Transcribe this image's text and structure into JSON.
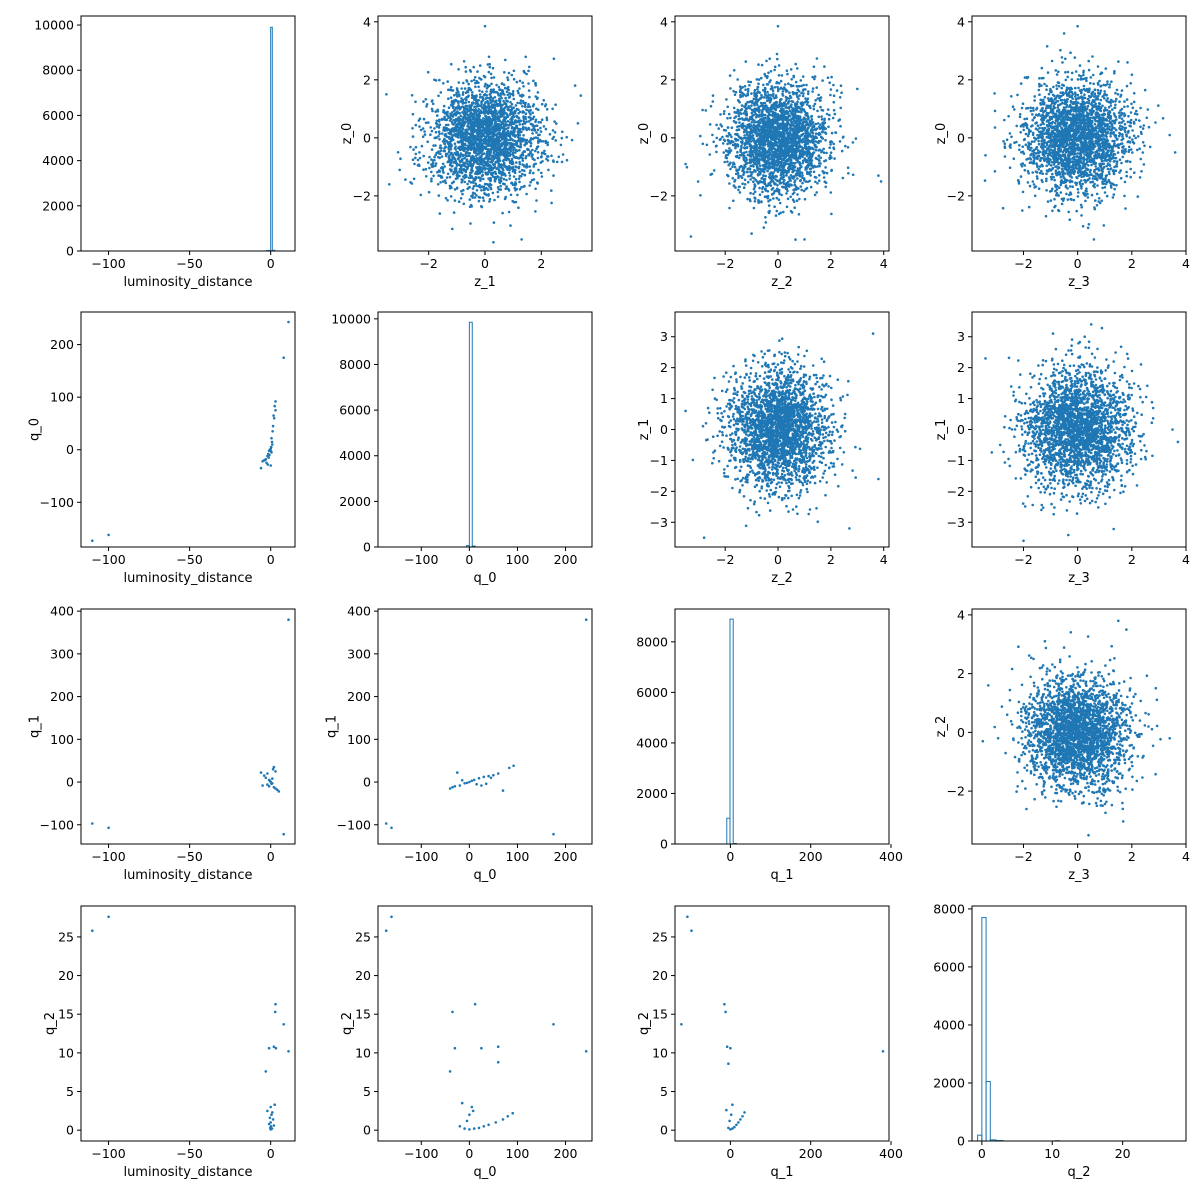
{
  "colors": {
    "series": "#1f77b4",
    "axes": "#000000",
    "background": "#ffffff"
  },
  "chart_data": [
    {
      "type": "bar",
      "row": 0,
      "col": 0,
      "xlabel": "luminosity_distance",
      "ylabel": "",
      "xlim": [
        -117,
        15
      ],
      "ylim": [
        0,
        10400
      ],
      "xticks": [
        -100,
        -50,
        0
      ],
      "yticks": [
        0,
        2000,
        4000,
        6000,
        8000,
        10000
      ],
      "bins": [
        {
          "x0": -2.5,
          "x1": 0,
          "count": 20
        },
        {
          "x0": 0,
          "x1": 1,
          "count": 9900
        },
        {
          "x0": 1,
          "x1": 2.5,
          "count": 30
        }
      ]
    },
    {
      "type": "scatter",
      "row": 0,
      "col": 1,
      "xlabel": "z_1",
      "ylabel": "z_0",
      "xlim": [
        -3.8,
        3.8
      ],
      "ylim": [
        -3.9,
        4.2
      ],
      "xticks": [
        -2,
        0,
        2
      ],
      "yticks": [
        -2,
        0,
        2,
        4
      ],
      "cloud": {
        "n": 2600,
        "sd": 0.95,
        "clip": 3.6
      },
      "points": [
        [
          0.0,
          3.85
        ],
        [
          -3.5,
          1.5
        ],
        [
          -3.4,
          -1.6
        ],
        [
          3.2,
          1.8
        ],
        [
          3.3,
          0.5
        ],
        [
          1.3,
          -3.5
        ],
        [
          0.3,
          -3.6
        ]
      ]
    },
    {
      "type": "scatter",
      "row": 0,
      "col": 2,
      "xlabel": "z_2",
      "ylabel": "z_0",
      "xlim": [
        -3.9,
        4.2
      ],
      "ylim": [
        -3.9,
        4.2
      ],
      "xticks": [
        -2,
        0,
        2,
        4
      ],
      "yticks": [
        -2,
        0,
        2,
        4
      ],
      "cloud": {
        "n": 2600,
        "sd": 0.95,
        "clip": 3.6
      },
      "points": [
        [
          0.0,
          3.85
        ],
        [
          -3.3,
          -3.4
        ],
        [
          -3.5,
          -0.9
        ],
        [
          3.9,
          -1.5
        ],
        [
          3.8,
          -1.3
        ],
        [
          1.0,
          -3.5
        ],
        [
          -1.0,
          -3.3
        ]
      ]
    },
    {
      "type": "scatter",
      "row": 0,
      "col": 3,
      "xlabel": "z_3",
      "ylabel": "z_0",
      "xlim": [
        -3.9,
        4.0
      ],
      "ylim": [
        -3.9,
        4.2
      ],
      "xticks": [
        -2,
        0,
        2,
        4
      ],
      "yticks": [
        -2,
        0,
        2,
        4
      ],
      "cloud": {
        "n": 2600,
        "sd": 0.95,
        "clip": 3.6
      },
      "points": [
        [
          0.0,
          3.85
        ],
        [
          -0.5,
          3.6
        ],
        [
          3.4,
          0.1
        ],
        [
          3.6,
          -0.5
        ],
        [
          -3.4,
          -0.6
        ],
        [
          0.6,
          -3.5
        ]
      ]
    },
    {
      "type": "scatter",
      "row": 1,
      "col": 0,
      "xlabel": "luminosity_distance",
      "ylabel": "q_0",
      "xlim": [
        -117,
        15
      ],
      "ylim": [
        -185,
        262
      ],
      "xticks": [
        -100,
        -50,
        0
      ],
      "yticks": [
        -100,
        0,
        100,
        200
      ],
      "points": [
        [
          -110,
          -173
        ],
        [
          -100,
          -162
        ],
        [
          11,
          243
        ],
        [
          8,
          175
        ],
        [
          3,
          92
        ],
        [
          2.5,
          83
        ],
        [
          3,
          75
        ],
        [
          1.8,
          65
        ],
        [
          2.2,
          60
        ],
        [
          1.5,
          45
        ],
        [
          1.2,
          35
        ],
        [
          0.5,
          22
        ],
        [
          0.8,
          15
        ],
        [
          1,
          10
        ],
        [
          0.3,
          5
        ],
        [
          0,
          2
        ],
        [
          -0.5,
          0
        ],
        [
          -1,
          -2
        ],
        [
          0.5,
          -5
        ],
        [
          -1.5,
          -8
        ],
        [
          -2,
          -12
        ],
        [
          -1.2,
          -15
        ],
        [
          -3,
          -18
        ],
        [
          -4,
          -20
        ],
        [
          -5,
          -22
        ],
        [
          -2.5,
          -25
        ],
        [
          -1.8,
          -28
        ],
        [
          0,
          -30
        ],
        [
          -6,
          -35
        ],
        [
          -3.5,
          -20
        ],
        [
          -0.8,
          -10
        ],
        [
          0.2,
          -3
        ]
      ]
    },
    {
      "type": "bar",
      "row": 1,
      "col": 1,
      "xlabel": "q_0",
      "ylabel": "",
      "xlim": [
        -190,
        255
      ],
      "ylim": [
        0,
        10300
      ],
      "xticks": [
        -100,
        0,
        100,
        200
      ],
      "yticks": [
        0,
        2000,
        4000,
        6000,
        8000,
        10000
      ],
      "bins": [
        {
          "x0": -6,
          "x1": 0,
          "count": 60
        },
        {
          "x0": 0,
          "x1": 6,
          "count": 9850
        },
        {
          "x0": 6,
          "x1": 12,
          "count": 40
        }
      ]
    },
    {
      "type": "scatter",
      "row": 1,
      "col": 2,
      "xlabel": "z_2",
      "ylabel": "z_1",
      "xlim": [
        -3.9,
        4.2
      ],
      "ylim": [
        -3.8,
        3.8
      ],
      "xticks": [
        -2,
        0,
        2,
        4
      ],
      "yticks": [
        -3,
        -2,
        -1,
        0,
        1,
        2,
        3
      ],
      "cloud": {
        "n": 2600,
        "sd": 0.95,
        "clip": 3.5
      },
      "points": [
        [
          3.6,
          3.1
        ],
        [
          3.8,
          -1.6
        ],
        [
          2.7,
          -3.2
        ],
        [
          -2.8,
          -3.5
        ],
        [
          -3.5,
          0.6
        ]
      ]
    },
    {
      "type": "scatter",
      "row": 1,
      "col": 3,
      "xlabel": "z_3",
      "ylabel": "z_1",
      "xlim": [
        -3.9,
        4.0
      ],
      "ylim": [
        -3.8,
        3.8
      ],
      "xticks": [
        -2,
        0,
        2,
        4
      ],
      "yticks": [
        -3,
        -2,
        -1,
        0,
        1,
        2,
        3
      ],
      "cloud": {
        "n": 2600,
        "sd": 0.95,
        "clip": 3.5
      },
      "points": [
        [
          -3.4,
          2.3
        ],
        [
          -2.0,
          -3.6
        ],
        [
          3.5,
          0.0
        ],
        [
          3.7,
          -0.4
        ],
        [
          0.5,
          3.4
        ]
      ]
    },
    {
      "type": "scatter",
      "row": 2,
      "col": 0,
      "xlabel": "luminosity_distance",
      "ylabel": "q_1",
      "xlim": [
        -117,
        15
      ],
      "ylim": [
        -145,
        405
      ],
      "xticks": [
        -100,
        -50,
        0
      ],
      "yticks": [
        -100,
        0,
        100,
        200,
        300,
        400
      ],
      "points": [
        [
          -110,
          -97
        ],
        [
          -100,
          -107
        ],
        [
          11,
          380
        ],
        [
          8,
          -122
        ],
        [
          2,
          35
        ],
        [
          1.5,
          30
        ],
        [
          3,
          25
        ],
        [
          -2,
          20
        ],
        [
          -4,
          15
        ],
        [
          -3,
          10
        ],
        [
          -1,
          5
        ],
        [
          0,
          0
        ],
        [
          1,
          -3
        ],
        [
          -2,
          -6
        ],
        [
          -5,
          -8
        ],
        [
          -1,
          -10
        ],
        [
          2,
          -12
        ],
        [
          3,
          -15
        ],
        [
          4,
          -18
        ],
        [
          5,
          -22
        ],
        [
          0.5,
          -4
        ],
        [
          -0.5,
          3
        ],
        [
          1,
          8
        ],
        [
          -6,
          22
        ]
      ]
    },
    {
      "type": "scatter",
      "row": 2,
      "col": 1,
      "xlabel": "q_0",
      "ylabel": "q_1",
      "xlim": [
        -190,
        255
      ],
      "ylim": [
        -145,
        405
      ],
      "xticks": [
        -100,
        0,
        100,
        200
      ],
      "yticks": [
        -100,
        0,
        100,
        200,
        300,
        400
      ],
      "points": [
        [
          243,
          380
        ],
        [
          -173,
          -97
        ],
        [
          -162,
          -107
        ],
        [
          175,
          -122
        ],
        [
          92,
          38
        ],
        [
          83,
          33
        ],
        [
          -40,
          -15
        ],
        [
          -30,
          -10
        ],
        [
          -20,
          -8
        ],
        [
          -10,
          -3
        ],
        [
          0,
          0
        ],
        [
          10,
          5
        ],
        [
          20,
          9
        ],
        [
          30,
          12
        ],
        [
          40,
          14
        ],
        [
          50,
          16
        ],
        [
          60,
          20
        ],
        [
          70,
          -20
        ],
        [
          -25,
          22
        ],
        [
          5,
          3
        ],
        [
          -5,
          -2
        ],
        [
          15,
          -5
        ],
        [
          25,
          -8
        ],
        [
          35,
          -4
        ],
        [
          45,
          10
        ],
        [
          -15,
          4
        ],
        [
          -35,
          -12
        ]
      ]
    },
    {
      "type": "bar",
      "row": 2,
      "col": 2,
      "xlabel": "q_1",
      "ylabel": "",
      "xlim": [
        -138,
        395
      ],
      "ylim": [
        0,
        9300
      ],
      "xticks": [
        0,
        200,
        400
      ],
      "yticks": [
        0,
        2000,
        4000,
        6000,
        8000
      ],
      "bins": [
        {
          "x0": -9,
          "x1": -1,
          "count": 1020
        },
        {
          "x0": -1,
          "x1": 7,
          "count": 8900
        },
        {
          "x0": 7,
          "x1": 15,
          "count": 20
        }
      ]
    },
    {
      "type": "scatter",
      "row": 2,
      "col": 3,
      "xlabel": "z_3",
      "ylabel": "z_2",
      "xlim": [
        -3.9,
        4.0
      ],
      "ylim": [
        -3.8,
        4.2
      ],
      "xticks": [
        -2,
        0,
        2,
        4
      ],
      "yticks": [
        -2,
        0,
        2,
        4
      ],
      "cloud": {
        "n": 2600,
        "sd": 0.95,
        "clip": 3.6
      },
      "points": [
        [
          1.5,
          3.8
        ],
        [
          1.8,
          3.5
        ],
        [
          -3.5,
          -0.3
        ],
        [
          3.4,
          -0.2
        ],
        [
          0.4,
          -3.5
        ],
        [
          -3.3,
          1.6
        ]
      ]
    },
    {
      "type": "scatter",
      "row": 3,
      "col": 0,
      "xlabel": "luminosity_distance",
      "ylabel": "q_2",
      "xlim": [
        -117,
        15
      ],
      "ylim": [
        -1.4,
        29.0
      ],
      "xticks": [
        -100,
        -50,
        0
      ],
      "yticks": [
        0,
        5,
        10,
        15,
        20,
        25
      ],
      "points": [
        [
          -110,
          25.8
        ],
        [
          -100,
          27.6
        ],
        [
          11,
          10.2
        ],
        [
          8,
          13.7
        ],
        [
          3,
          16.3
        ],
        [
          2.8,
          15.3
        ],
        [
          2,
          10.8
        ],
        [
          3.2,
          10.6
        ],
        [
          -1,
          10.6
        ],
        [
          -3,
          7.6
        ],
        [
          0,
          3.0
        ],
        [
          1,
          2.3
        ],
        [
          0.5,
          2.0
        ],
        [
          -0.5,
          1.6
        ],
        [
          1.5,
          1.4
        ],
        [
          0,
          1.0
        ],
        [
          -1,
          0.8
        ],
        [
          2,
          0.6
        ],
        [
          0.2,
          0.5
        ],
        [
          -0.3,
          0.3
        ],
        [
          0.8,
          0.2
        ],
        [
          0,
          0.1
        ],
        [
          -2,
          2.5
        ],
        [
          2.5,
          3.3
        ]
      ]
    },
    {
      "type": "scatter",
      "row": 3,
      "col": 1,
      "xlabel": "q_0",
      "ylabel": "q_2",
      "xlim": [
        -190,
        255
      ],
      "ylim": [
        -1.4,
        29.0
      ],
      "xticks": [
        -100,
        0,
        100,
        200
      ],
      "yticks": [
        0,
        5,
        10,
        15,
        20,
        25
      ],
      "points": [
        [
          -173,
          25.8
        ],
        [
          -162,
          27.6
        ],
        [
          243,
          10.2
        ],
        [
          175,
          13.7
        ],
        [
          12,
          16.3
        ],
        [
          -35,
          15.3
        ],
        [
          -30,
          10.6
        ],
        [
          25,
          10.6
        ],
        [
          60,
          10.8
        ],
        [
          -40,
          7.6
        ],
        [
          60,
          8.8
        ],
        [
          5,
          3.0
        ],
        [
          90,
          2.2
        ],
        [
          80,
          1.8
        ],
        [
          70,
          1.4
        ],
        [
          55,
          1.0
        ],
        [
          40,
          0.7
        ],
        [
          30,
          0.5
        ],
        [
          20,
          0.3
        ],
        [
          10,
          0.2
        ],
        [
          0,
          0.1
        ],
        [
          -10,
          0.2
        ],
        [
          -20,
          0.5
        ],
        [
          -5,
          1.2
        ],
        [
          0,
          2.0
        ],
        [
          8,
          2.5
        ],
        [
          -15,
          3.5
        ]
      ]
    },
    {
      "type": "scatter",
      "row": 3,
      "col": 2,
      "xlabel": "q_1",
      "ylabel": "q_2",
      "xlim": [
        -138,
        395
      ],
      "ylim": [
        -1.4,
        29.0
      ],
      "xticks": [
        0,
        200,
        400
      ],
      "yticks": [
        0,
        5,
        10,
        15,
        20,
        25
      ],
      "points": [
        [
          -107,
          27.6
        ],
        [
          -97,
          25.8
        ],
        [
          -122,
          13.7
        ],
        [
          380,
          10.2
        ],
        [
          -15,
          16.3
        ],
        [
          -12,
          15.3
        ],
        [
          -8,
          10.8
        ],
        [
          0,
          10.6
        ],
        [
          -5,
          8.6
        ],
        [
          5,
          3.3
        ],
        [
          35,
          2.3
        ],
        [
          30,
          1.8
        ],
        [
          25,
          1.4
        ],
        [
          20,
          1.0
        ],
        [
          15,
          0.7
        ],
        [
          10,
          0.4
        ],
        [
          5,
          0.2
        ],
        [
          0,
          0.1
        ],
        [
          -5,
          0.3
        ],
        [
          -2,
          1.2
        ],
        [
          2,
          2.0
        ],
        [
          -10,
          2.6
        ]
      ]
    },
    {
      "type": "bar",
      "row": 3,
      "col": 3,
      "xlabel": "q_2",
      "ylabel": "",
      "xlim": [
        -1.4,
        29.0
      ],
      "ylim": [
        0,
        8100
      ],
      "xticks": [
        0,
        10,
        20
      ],
      "yticks": [
        0,
        2000,
        4000,
        6000,
        8000
      ],
      "bins": [
        {
          "x0": -0.6,
          "x1": 0,
          "count": 200
        },
        {
          "x0": 0,
          "x1": 0.6,
          "count": 7700
        },
        {
          "x0": 0.6,
          "x1": 1.2,
          "count": 2050
        },
        {
          "x0": 1.2,
          "x1": 2.0,
          "count": 40
        },
        {
          "x0": 2.0,
          "x1": 3.0,
          "count": 15
        },
        {
          "x0": 10.4,
          "x1": 11.0,
          "count": 10
        }
      ]
    }
  ]
}
